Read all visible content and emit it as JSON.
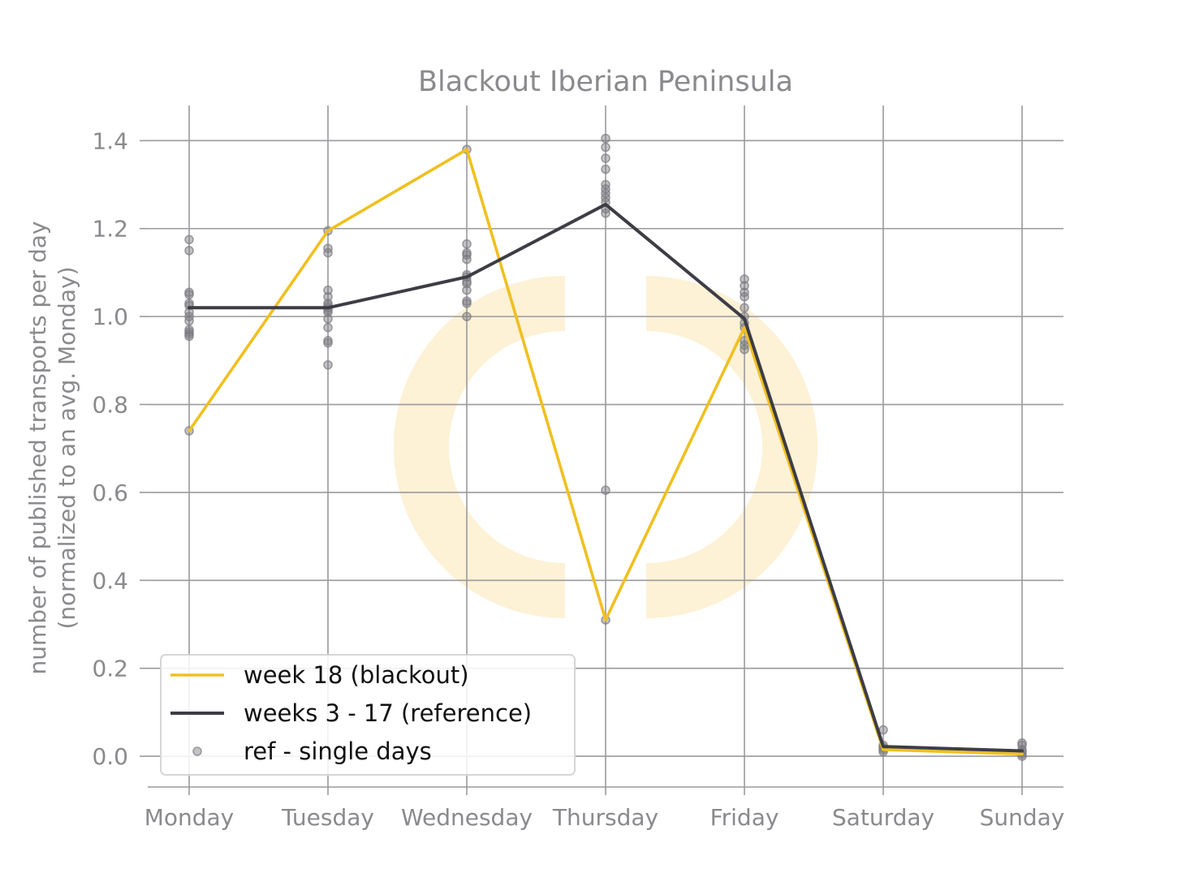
{
  "chart_data": {
    "type": "line",
    "title": "Blackout Iberian Peninsula",
    "xlabel": "",
    "ylabel_line1": "number of published transports per day",
    "ylabel_line2": "(normalized to an avg. Monday)",
    "categories": [
      "Monday",
      "Tuesday",
      "Wednesday",
      "Thursday",
      "Friday",
      "Saturday",
      "Sunday"
    ],
    "ylim": [
      -0.07,
      1.48
    ],
    "yticks": [
      0.0,
      0.2,
      0.4,
      0.6,
      0.8,
      1.0,
      1.2,
      1.4
    ],
    "ytick_labels": [
      "0.0",
      "0.2",
      "0.4",
      "0.6",
      "0.8",
      "1.0",
      "1.2",
      "1.4"
    ],
    "grid": true,
    "legend_position": "bottom-left",
    "series": [
      {
        "name": "week 18 (blackout)",
        "kind": "line",
        "color": "#f0c020",
        "values": [
          0.74,
          1.195,
          1.38,
          0.31,
          0.975,
          0.015,
          0.005
        ]
      },
      {
        "name": "weeks 3 - 17 (reference)",
        "kind": "line",
        "color": "#3d3d45",
        "values": [
          1.02,
          1.02,
          1.09,
          1.255,
          0.995,
          0.022,
          0.012
        ]
      },
      {
        "name": "ref - single days",
        "kind": "scatter",
        "color": "#7a7a80",
        "points": [
          [
            [
              0.74,
              0.955,
              0.96,
              0.965,
              0.97,
              0.99,
              1.0,
              1.01,
              1.025,
              1.03,
              1.05,
              1.055,
              1.15,
              1.175
            ]
          ],
          [
            [
              0.89,
              0.94,
              0.945,
              0.975,
              0.995,
              1.01,
              1.015,
              1.02,
              1.025,
              1.03,
              1.045,
              1.06,
              1.145,
              1.155,
              1.195
            ]
          ],
          [
            [
              1.0,
              1.03,
              1.035,
              1.06,
              1.075,
              1.08,
              1.09,
              1.095,
              1.13,
              1.14,
              1.145,
              1.165,
              1.38
            ]
          ],
          [
            [
              0.31,
              0.605,
              1.235,
              1.245,
              1.26,
              1.27,
              1.28,
              1.29,
              1.3,
              1.335,
              1.36,
              1.385,
              1.405
            ]
          ],
          [
            [
              0.925,
              0.935,
              0.945,
              0.975,
              0.985,
              1.0,
              1.02,
              1.045,
              1.055,
              1.07,
              1.085
            ]
          ],
          [
            [
              0.01,
              0.015,
              0.02,
              0.025,
              0.06
            ]
          ],
          [
            [
              0.0,
              0.005,
              0.01,
              0.015,
              0.025,
              0.03
            ]
          ]
        ]
      }
    ]
  },
  "colors": {
    "grid": "#9a9a9e",
    "tick_text": "#8a8a8e",
    "watermark": "#fdf1d6"
  },
  "watermark_icon": "power-ring-logo"
}
